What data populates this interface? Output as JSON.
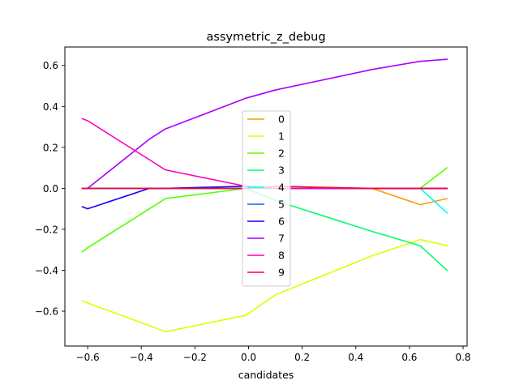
{
  "chart_data": {
    "type": "line",
    "title": "assymetric_z_debug",
    "xlabel": "candidates",
    "ylabel": "",
    "xlim": [
      -0.685,
      0.815
    ],
    "ylim": [
      -0.77,
      0.69
    ],
    "x_ticks": [
      -0.6,
      -0.4,
      -0.2,
      0.0,
      0.2,
      0.4,
      0.6,
      0.8
    ],
    "x_tick_labels": [
      "−0.6",
      "−0.4",
      "−0.2",
      "0.0",
      "0.2",
      "0.4",
      "0.6",
      "0.8"
    ],
    "y_ticks": [
      -0.6,
      -0.4,
      -0.2,
      0.0,
      0.2,
      0.4,
      0.6
    ],
    "y_tick_labels": [
      "−0.6",
      "−0.4",
      "−0.2",
      "0.0",
      "0.2",
      "0.4",
      "0.6"
    ],
    "grid": false,
    "legend_position": "center",
    "series": [
      {
        "name": "0",
        "color": "#ff9900",
        "x": [
          -0.62,
          -0.6,
          -0.37,
          -0.31,
          -0.01,
          0.1,
          0.46,
          0.64,
          0.74
        ],
        "y": [
          0.0,
          0.0,
          0.0,
          0.0,
          0.0,
          0.0,
          0.0,
          -0.08,
          -0.05
        ]
      },
      {
        "name": "1",
        "color": "#ddff00",
        "x": [
          -0.62,
          -0.6,
          -0.37,
          -0.31,
          -0.01,
          0.1,
          0.46,
          0.64,
          0.74
        ],
        "y": [
          -0.55,
          -0.56,
          -0.67,
          -0.7,
          -0.62,
          -0.52,
          -0.33,
          -0.25,
          -0.28
        ]
      },
      {
        "name": "2",
        "color": "#55ff00",
        "x": [
          -0.62,
          -0.6,
          -0.37,
          -0.31,
          -0.01,
          0.1,
          0.46,
          0.64,
          0.74
        ],
        "y": [
          -0.31,
          -0.29,
          -0.1,
          -0.05,
          0.0,
          0.0,
          0.0,
          0.0,
          0.1
        ]
      },
      {
        "name": "3",
        "color": "#00ff66",
        "x": [
          -0.62,
          -0.6,
          -0.37,
          -0.31,
          -0.01,
          0.1,
          0.46,
          0.64,
          0.74
        ],
        "y": [
          0.0,
          0.0,
          0.0,
          0.0,
          0.0,
          -0.06,
          -0.21,
          -0.28,
          -0.4
        ]
      },
      {
        "name": "4",
        "color": "#00ffee",
        "x": [
          -0.62,
          -0.6,
          -0.37,
          -0.31,
          -0.01,
          0.1,
          0.46,
          0.64,
          0.74
        ],
        "y": [
          0.0,
          0.0,
          0.0,
          0.0,
          0.0,
          0.0,
          0.0,
          0.0,
          -0.12
        ]
      },
      {
        "name": "5",
        "color": "#0066ff",
        "x": [
          -0.62,
          -0.6,
          -0.37,
          -0.31,
          -0.01,
          0.1,
          0.46,
          0.64,
          0.74
        ],
        "y": [
          0.0,
          0.0,
          0.0,
          0.0,
          0.0,
          0.0,
          0.0,
          0.0,
          0.0
        ]
      },
      {
        "name": "6",
        "color": "#1100ff",
        "x": [
          -0.62,
          -0.6,
          -0.37,
          -0.31,
          -0.01,
          0.1,
          0.46,
          0.64,
          0.74
        ],
        "y": [
          -0.09,
          -0.1,
          0.0,
          0.0,
          0.01,
          0.0,
          0.0,
          0.0,
          0.0
        ]
      },
      {
        "name": "7",
        "color": "#aa00ff",
        "x": [
          -0.62,
          -0.6,
          -0.37,
          -0.31,
          -0.01,
          0.1,
          0.46,
          0.64,
          0.74
        ],
        "y": [
          0.0,
          0.0,
          0.24,
          0.29,
          0.44,
          0.48,
          0.58,
          0.62,
          0.63
        ]
      },
      {
        "name": "8",
        "color": "#ff00bb",
        "x": [
          -0.62,
          -0.6,
          -0.37,
          -0.31,
          -0.01,
          0.1,
          0.46,
          0.64,
          0.74
        ],
        "y": [
          0.34,
          0.33,
          0.14,
          0.09,
          0.01,
          0.0,
          0.0,
          0.0,
          0.0
        ]
      },
      {
        "name": "9",
        "color": "#ff0033",
        "x": [
          -0.62,
          -0.6,
          -0.37,
          -0.31,
          -0.01,
          0.1,
          0.46,
          0.64,
          0.74
        ],
        "y": [
          0.0,
          0.0,
          0.0,
          0.0,
          0.0,
          0.01,
          0.0,
          0.0,
          0.0
        ]
      }
    ]
  }
}
